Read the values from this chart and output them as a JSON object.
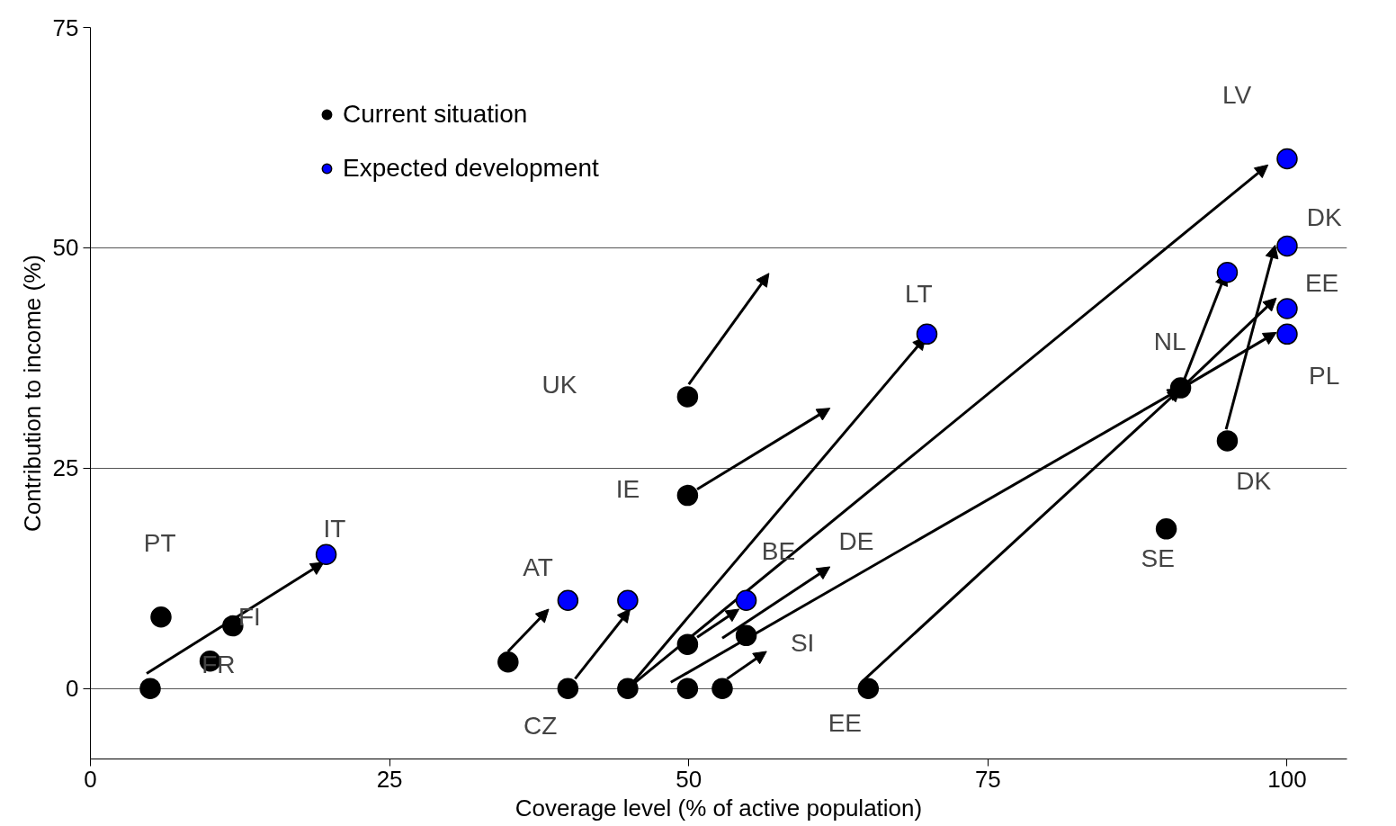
{
  "chart_data": {
    "type": "scatter",
    "xlabel": "Coverage level (% of active population)",
    "ylabel": "Contribution to income (%)",
    "xlim": [
      0,
      105
    ],
    "ylim": [
      -8,
      75
    ],
    "xticks": [
      0,
      25,
      50,
      75,
      100
    ],
    "yticks": [
      0,
      25,
      50,
      75
    ],
    "grid": "y",
    "legend": "top left",
    "marker": "circle",
    "series": [
      {
        "name": "Current situation",
        "color": "#000000",
        "x": [
          5,
          5.9,
          11.9,
          10,
          34.9,
          39.9,
          44.9,
          49.9,
          49.9,
          49.9,
          49.9,
          52.8,
          54.8,
          65,
          89.9,
          91.1,
          95
        ],
        "values": [
          0,
          8.1,
          7.1,
          3.1,
          3,
          0,
          0,
          33.1,
          21.9,
          5,
          0,
          0,
          6,
          0,
          18.1,
          34.1,
          28.1
        ]
      },
      {
        "name": "Expected development",
        "color": "#0000ff",
        "x": [
          19.7,
          39.9,
          44.9,
          54.8,
          69.9,
          95,
          100,
          100,
          100,
          100
        ],
        "values": [
          15.2,
          10,
          10,
          10,
          40.2,
          47.2,
          60.1,
          50.2,
          43.1,
          40.2
        ]
      }
    ],
    "annotations": [
      "PT",
      "FI",
      "FR",
      "IT",
      "AT",
      "CZ",
      "UK",
      "IE",
      "BE",
      "DE",
      "SI",
      {
        "text": "EE",
        "x": 65,
        "y": 0
      },
      "LT",
      "LV",
      "NL",
      "SE",
      "DK",
      "DK",
      "EE",
      "PL"
    ]
  }
}
